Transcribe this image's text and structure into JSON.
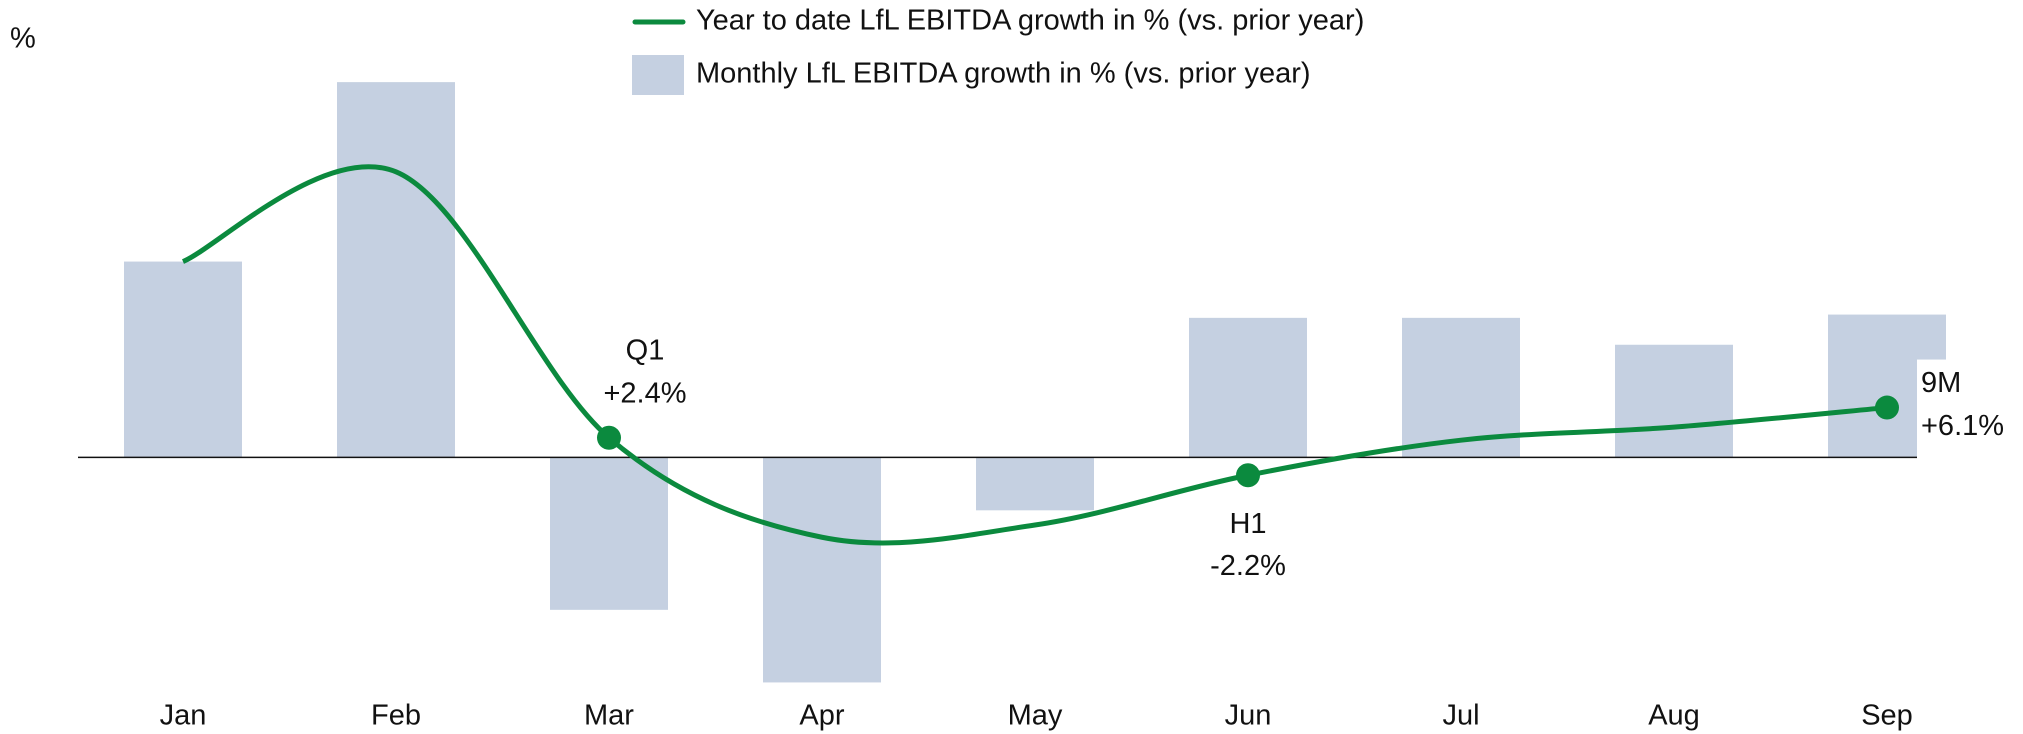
{
  "chart_data": {
    "type": "bar_line",
    "y_label": "%",
    "categories": [
      "Jan",
      "Feb",
      "Mar",
      "Apr",
      "May",
      "Jun",
      "Jul",
      "Aug",
      "Sep"
    ],
    "ylim": [
      -30,
      50
    ],
    "legend": "top",
    "series": [
      {
        "name": "Year to date LfL EBITDA growth in % (vs. prior year)",
        "type": "line",
        "color": "#0b8a3e",
        "values": [
          24,
          35,
          2.4,
          -9.8,
          -8.3,
          -2.2,
          2.1,
          3.7,
          6.1
        ],
        "point_labels": [
          null,
          null,
          "Q1",
          null,
          null,
          "H1",
          null,
          null,
          "9M"
        ],
        "value_labels": [
          null,
          null,
          "+2.4%",
          null,
          null,
          "-2.2%",
          null,
          null,
          "+6.1%"
        ]
      },
      {
        "name": "Monthly LfL EBITDA growth in % (vs. prior year)",
        "type": "bar",
        "color": "#c5d0e1",
        "values": [
          24,
          46,
          -18.7,
          -27.6,
          -6.5,
          17.1,
          17.1,
          13.8,
          17.5
        ]
      }
    ]
  }
}
